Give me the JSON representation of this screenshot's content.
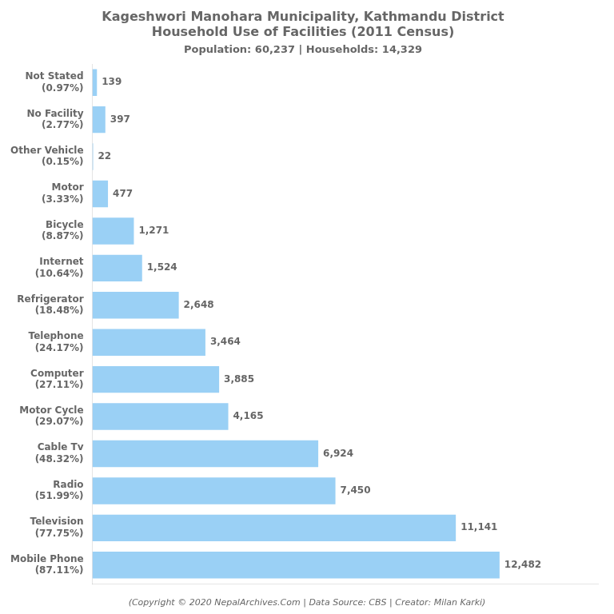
{
  "chart_data": {
    "type": "bar",
    "orientation": "horizontal",
    "title": "Kageshwori Manohara Municipality, Kathmandu District\nHousehold Use of Facilities (2011 Census)",
    "subtitle": "Population: 60,237 | Households: 14,329",
    "annotations": [
      "(Copyright © 2020 NepalArchives.Com | Data Source: CBS | Creator: Milan Karki)"
    ],
    "categories": [
      "Mobile Phone\n(87.11%)",
      "Television\n(77.75%)",
      "Radio\n(51.99%)",
      "Cable Tv\n(48.32%)",
      "Motor Cycle\n(29.07%)",
      "Computer\n(27.11%)",
      "Telephone\n(24.17%)",
      "Refrigerator\n(18.48%)",
      "Internet\n(10.64%)",
      "Bicycle\n(8.87%)",
      "Motor\n(3.33%)",
      "Other Vehicle\n(0.15%)",
      "No Facility\n(2.77%)",
      "Not Stated\n(0.97%)"
    ],
    "values": [
      12482,
      11141,
      7450,
      6924,
      4165,
      3885,
      3464,
      2648,
      1524,
      1271,
      477,
      22,
      397,
      139
    ],
    "value_labels": [
      "12,482",
      "11,141",
      "7,450",
      "6,924",
      "4,165",
      "3,885",
      "3,464",
      "2,648",
      "1,524",
      "1,271",
      "477",
      "22",
      "397",
      "139"
    ],
    "data_labels": true,
    "xlim": [
      0,
      15500
    ],
    "grid": false,
    "tick_labels": "y"
  }
}
